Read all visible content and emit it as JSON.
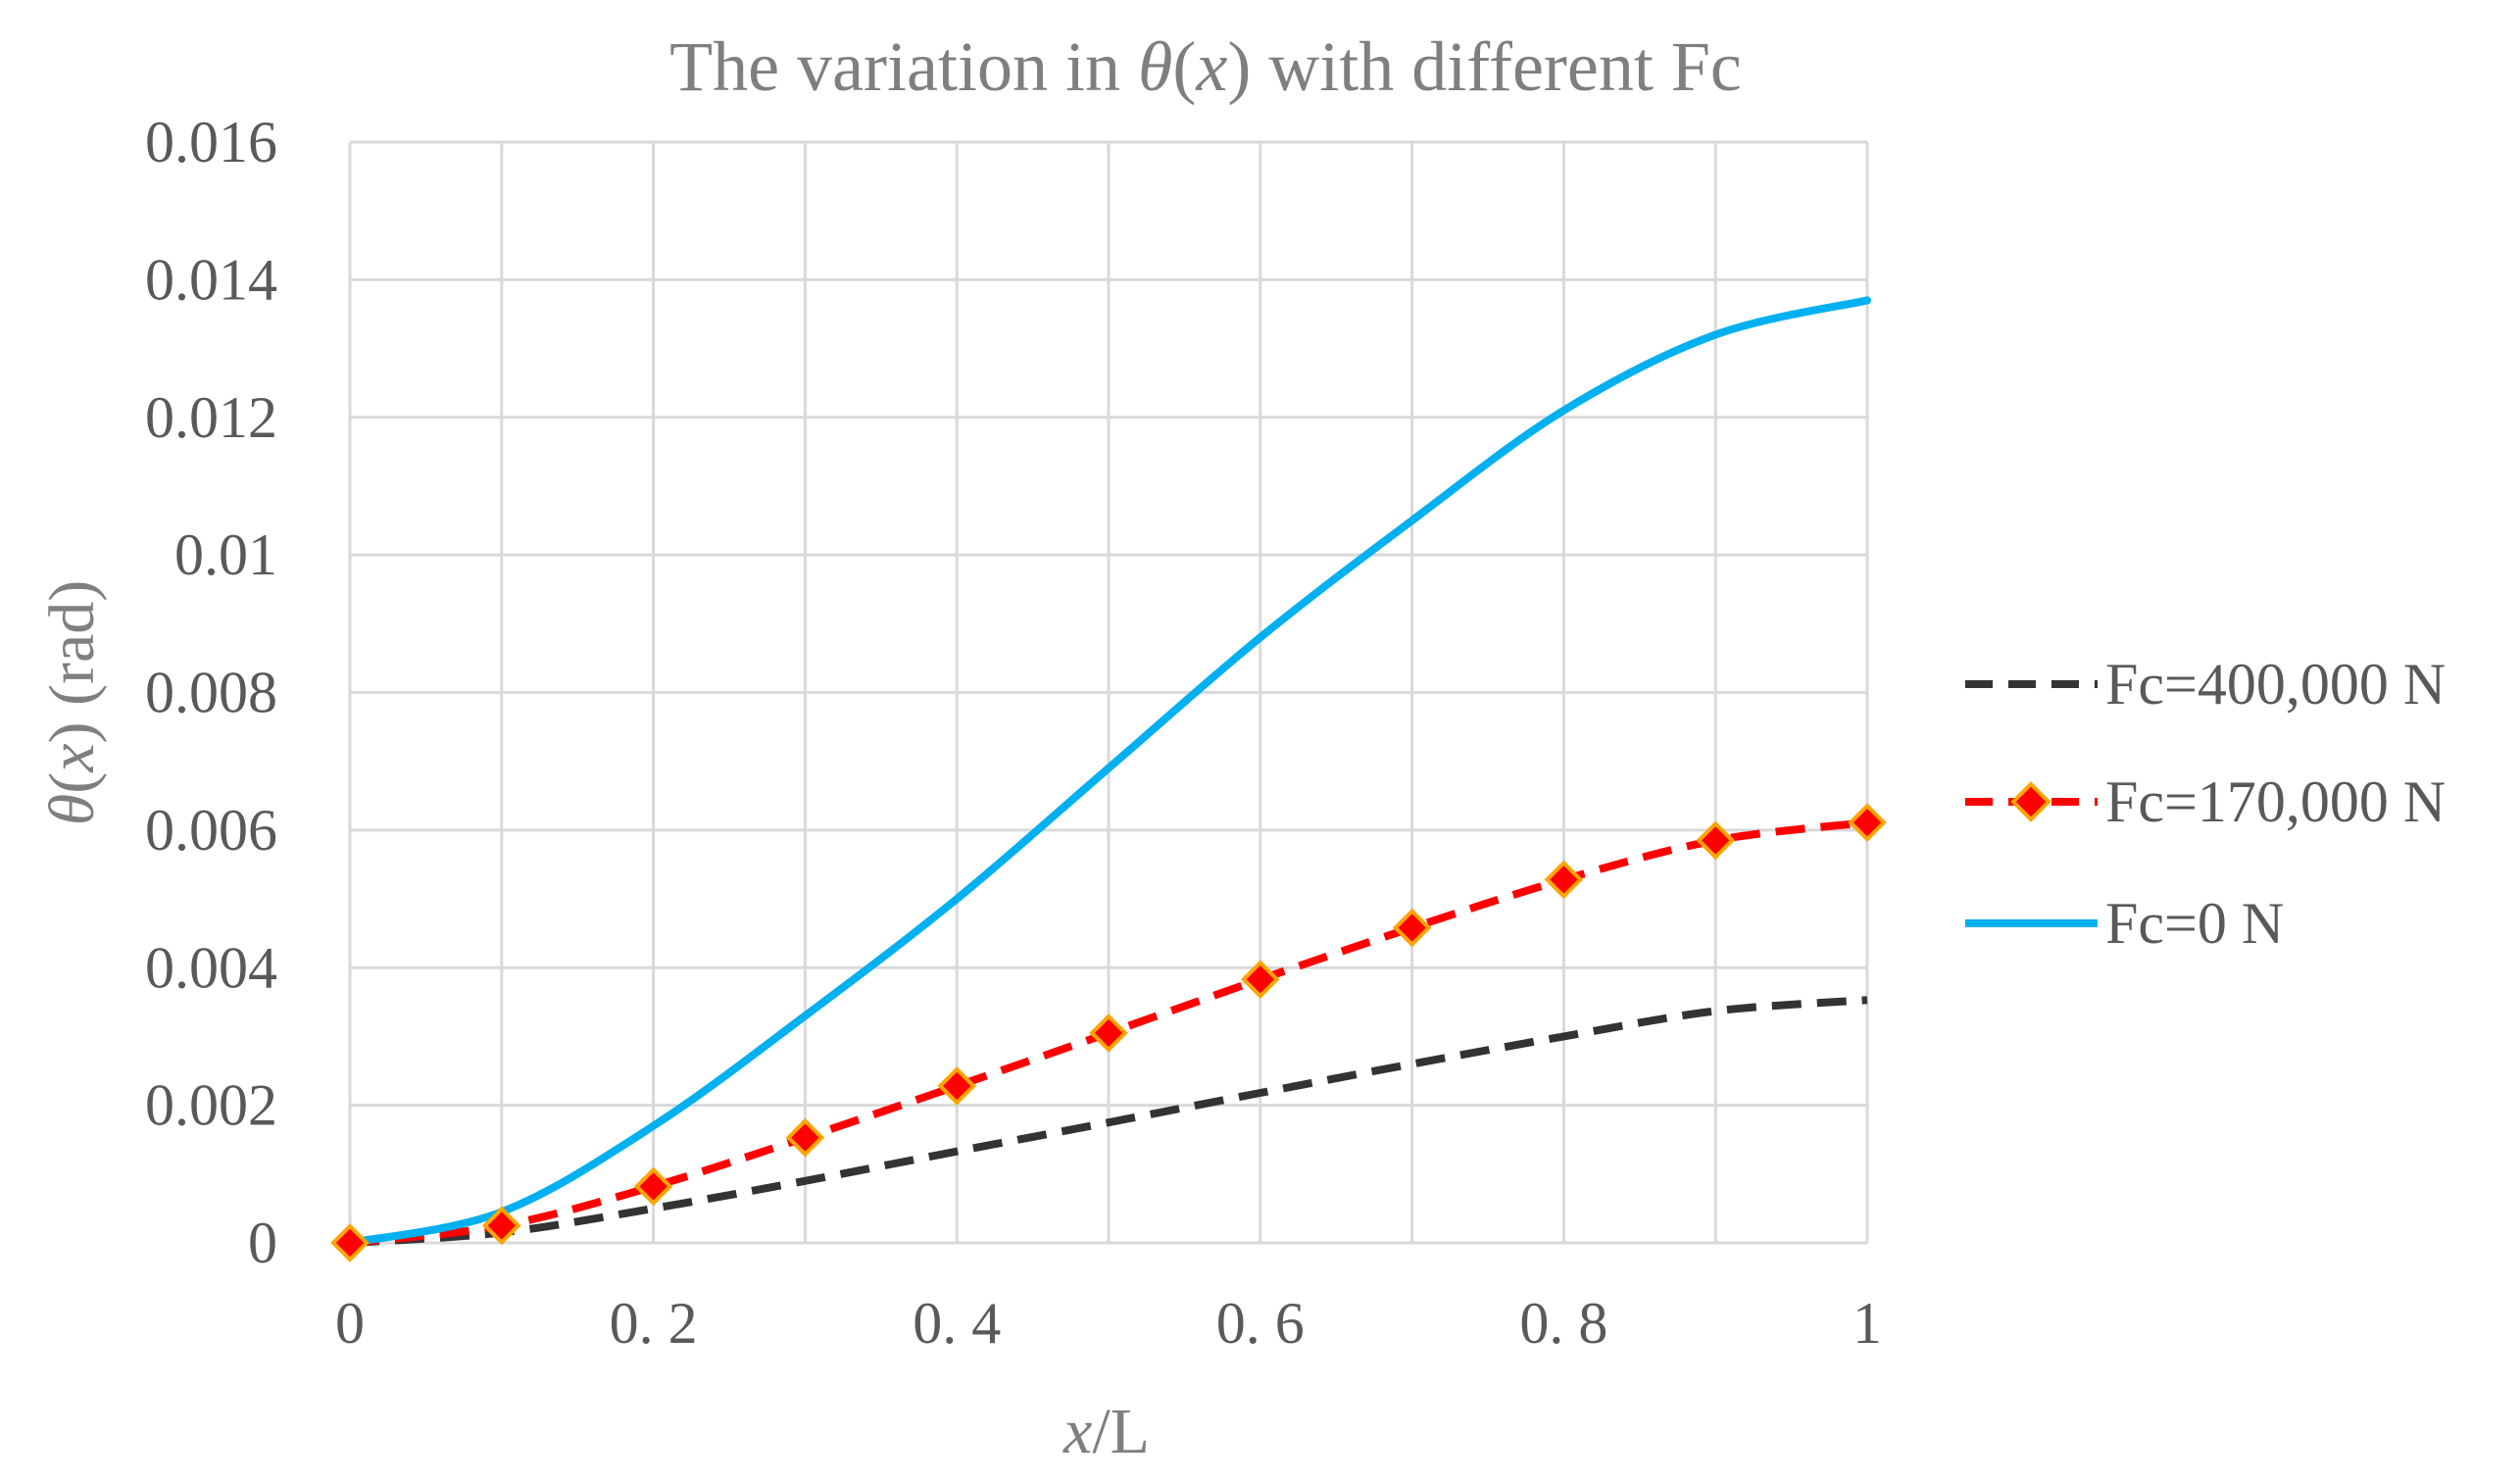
{
  "chart_data": {
    "type": "line",
    "title": "The variation in θ(x) with different Fc",
    "title_parts": {
      "prefix": "The variation in ",
      "symbol": "θ",
      "open": "(",
      "var": "x",
      "close": ")",
      "suffix": " with different Fc"
    },
    "xlabel": "x/L",
    "xlabel_parts": {
      "var": "x",
      "rest": "/L"
    },
    "ylabel": "θ(x) (rad)",
    "ylabel_parts": {
      "symbol": "θ",
      "open": "(",
      "var": "x",
      "close": ")",
      "rest": " (rad)"
    },
    "xlim": [
      0,
      1
    ],
    "ylim": [
      0,
      0.016
    ],
    "grid": true,
    "legend_position": "right",
    "x_ticks": [
      {
        "value": 0,
        "label": "0"
      },
      {
        "value": 0.2,
        "label": "0. 2"
      },
      {
        "value": 0.4,
        "label": "0. 4"
      },
      {
        "value": 0.6,
        "label": "0. 6"
      },
      {
        "value": 0.8,
        "label": "0. 8"
      },
      {
        "value": 1,
        "label": "1"
      }
    ],
    "x_gridlines": [
      0,
      0.1,
      0.2,
      0.3,
      0.4,
      0.5,
      0.6,
      0.7,
      0.8,
      0.9,
      1.0
    ],
    "y_ticks": [
      {
        "value": 0,
        "label": "0"
      },
      {
        "value": 0.002,
        "label": "0.002"
      },
      {
        "value": 0.004,
        "label": "0.004"
      },
      {
        "value": 0.006,
        "label": "0.006"
      },
      {
        "value": 0.008,
        "label": "0.008"
      },
      {
        "value": 0.01,
        "label": "0.01"
      },
      {
        "value": 0.012,
        "label": "0.012"
      },
      {
        "value": 0.014,
        "label": "0.014"
      },
      {
        "value": 0.016,
        "label": "0.016"
      }
    ],
    "series": [
      {
        "name": "Fc=400,000 N",
        "color": "#333333",
        "style": "dashed",
        "markers": false,
        "x": [
          0,
          0.1,
          0.2,
          0.3,
          0.4,
          0.5,
          0.6,
          0.7,
          0.8,
          0.9,
          1.0
        ],
        "y": [
          0,
          0.00015,
          0.0005,
          0.0009,
          0.00133,
          0.00175,
          0.00218,
          0.0026,
          0.003,
          0.00337,
          0.00353
        ]
      },
      {
        "name": "Fc=170,000 N",
        "color": "#ff0000",
        "marker_fill": "#ff0000",
        "marker_edge": "#ffa500",
        "style": "dashed",
        "markers": true,
        "x": [
          0,
          0.1,
          0.2,
          0.3,
          0.4,
          0.5,
          0.6,
          0.7,
          0.8,
          0.9,
          1.0
        ],
        "y": [
          0,
          0.00025,
          0.00082,
          0.00153,
          0.00228,
          0.00305,
          0.00383,
          0.00458,
          0.00528,
          0.00585,
          0.00611
        ]
      },
      {
        "name": "Fc=0 N",
        "color": "#00b0f0",
        "style": "solid",
        "markers": false,
        "x": [
          0,
          0.1,
          0.2,
          0.3,
          0.4,
          0.5,
          0.6,
          0.7,
          0.8,
          0.9,
          1.0
        ],
        "y": [
          0,
          0.00045,
          0.0017,
          0.0033,
          0.005,
          0.0069,
          0.0088,
          0.0105,
          0.0121,
          0.0132,
          0.0137
        ]
      }
    ]
  }
}
